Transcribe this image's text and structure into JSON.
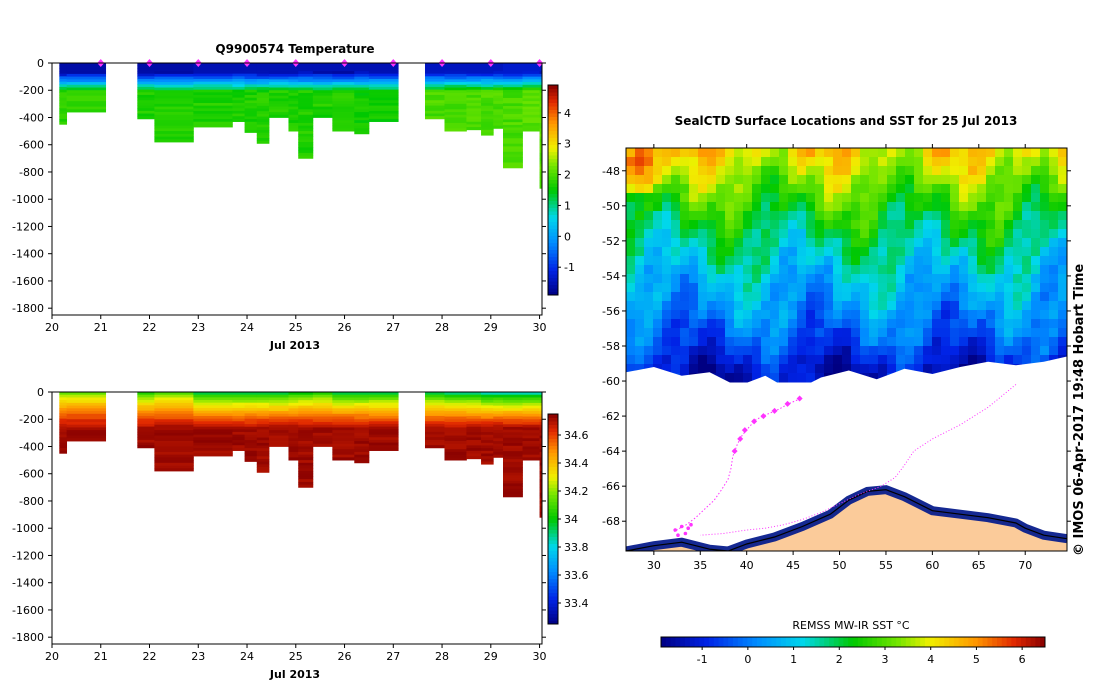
{
  "credit": "© IMOS 06-Apr-2017 19:48 Hobart Time",
  "colors": {
    "land": "#fbcb9a",
    "track": "#ff33ff",
    "marker": "#ff33ff",
    "coast": "#000000"
  },
  "chart_data": [
    {
      "id": "temperature",
      "type": "heatmap",
      "title": "Q9900574  Temperature",
      "xlabel": "Jul 2013",
      "ylabel": "",
      "x_ticks": [
        "20",
        "21",
        "22",
        "23",
        "24",
        "25",
        "26",
        "27",
        "28",
        "29",
        "30"
      ],
      "xlim": [
        20,
        30.05
      ],
      "y_ticks": [
        "0",
        "-200",
        "-400",
        "-600",
        "-800",
        "-1000",
        "-1200",
        "-1400",
        "-1600",
        "-1800"
      ],
      "ylim": [
        -1850,
        0
      ],
      "colorbar": {
        "min": -1.9,
        "max": 4.9,
        "ticks": [
          "-1",
          "0",
          "1",
          "2",
          "3",
          "4"
        ]
      },
      "profile_markers_day": [
        21,
        22,
        23,
        24,
        25,
        26,
        27,
        28,
        29,
        30
      ],
      "profiles": [
        {
          "t0": 20.15,
          "t1": 20.3,
          "depth": 450,
          "surface": -1.6,
          "deep": 1.8
        },
        {
          "t0": 20.3,
          "t1": 21.1,
          "depth": 360,
          "surface": -1.6,
          "deep": 1.8
        },
        {
          "t0": 21.75,
          "t1": 22.1,
          "depth": 410,
          "surface": -1.6,
          "deep": 1.7
        },
        {
          "t0": 22.1,
          "t1": 22.9,
          "depth": 580,
          "surface": -1.6,
          "deep": 1.7
        },
        {
          "t0": 22.9,
          "t1": 23.7,
          "depth": 470,
          "surface": -1.5,
          "deep": 1.7
        },
        {
          "t0": 23.7,
          "t1": 23.95,
          "depth": 430,
          "surface": -1.5,
          "deep": 1.7
        },
        {
          "t0": 23.95,
          "t1": 24.2,
          "depth": 510,
          "surface": -1.5,
          "deep": 1.7
        },
        {
          "t0": 24.2,
          "t1": 24.45,
          "depth": 590,
          "surface": -1.5,
          "deep": 1.7
        },
        {
          "t0": 24.45,
          "t1": 24.85,
          "depth": 400,
          "surface": -1.5,
          "deep": 1.7
        },
        {
          "t0": 24.85,
          "t1": 25.05,
          "depth": 500,
          "surface": -1.5,
          "deep": 1.7
        },
        {
          "t0": 25.05,
          "t1": 25.35,
          "depth": 700,
          "surface": -1.5,
          "deep": 1.7
        },
        {
          "t0": 25.35,
          "t1": 25.75,
          "depth": 400,
          "surface": -1.5,
          "deep": 1.7
        },
        {
          "t0": 25.75,
          "t1": 26.2,
          "depth": 500,
          "surface": -1.5,
          "deep": 1.7
        },
        {
          "t0": 26.2,
          "t1": 26.5,
          "depth": 520,
          "surface": -1.5,
          "deep": 1.6
        },
        {
          "t0": 26.5,
          "t1": 27.1,
          "depth": 430,
          "surface": -1.5,
          "deep": 1.6
        },
        {
          "t0": 27.65,
          "t1": 28.05,
          "depth": 410,
          "surface": -1.4,
          "deep": 2.0
        },
        {
          "t0": 28.05,
          "t1": 28.5,
          "depth": 500,
          "surface": -1.4,
          "deep": 2.0
        },
        {
          "t0": 28.5,
          "t1": 28.8,
          "depth": 490,
          "surface": -1.4,
          "deep": 2.0
        },
        {
          "t0": 28.8,
          "t1": 29.05,
          "depth": 530,
          "surface": -1.4,
          "deep": 2.0
        },
        {
          "t0": 29.05,
          "t1": 29.25,
          "depth": 480,
          "surface": -1.4,
          "deep": 2.0
        },
        {
          "t0": 29.25,
          "t1": 29.65,
          "depth": 770,
          "surface": -1.3,
          "deep": 2.0
        },
        {
          "t0": 29.65,
          "t1": 30.0,
          "depth": 500,
          "surface": -1.3,
          "deep": 2.1
        },
        {
          "t0": 30.0,
          "t1": 30.05,
          "depth": 920,
          "surface": -1.3,
          "deep": 2.1
        }
      ]
    },
    {
      "id": "salinity",
      "type": "heatmap",
      "title": "",
      "xlabel": "Jul 2013",
      "ylabel": "",
      "x_ticks": [
        "20",
        "21",
        "22",
        "23",
        "24",
        "25",
        "26",
        "27",
        "28",
        "29",
        "30"
      ],
      "xlim": [
        20,
        30.05
      ],
      "y_ticks": [
        "0",
        "-200",
        "-400",
        "-600",
        "-800",
        "-1000",
        "-1200",
        "-1400",
        "-1600",
        "-1800"
      ],
      "ylim": [
        -1850,
        0
      ],
      "colorbar": {
        "min": 33.25,
        "max": 34.75,
        "ticks": [
          "33.4",
          "33.6",
          "33.8",
          "34",
          "34.2",
          "34.4",
          "34.6"
        ]
      },
      "profiles": [
        {
          "t0": 20.15,
          "t1": 20.3,
          "depth": 450,
          "surface": 34.15,
          "deep": 34.72
        },
        {
          "t0": 20.3,
          "t1": 21.1,
          "depth": 360,
          "surface": 34.15,
          "deep": 34.72
        },
        {
          "t0": 21.75,
          "t1": 22.1,
          "depth": 410,
          "surface": 34.05,
          "deep": 34.72
        },
        {
          "t0": 22.1,
          "t1": 22.9,
          "depth": 580,
          "surface": 34.12,
          "deep": 34.72
        },
        {
          "t0": 22.9,
          "t1": 23.7,
          "depth": 470,
          "surface": 33.95,
          "deep": 34.72
        },
        {
          "t0": 23.7,
          "t1": 23.95,
          "depth": 430,
          "surface": 33.95,
          "deep": 34.72
        },
        {
          "t0": 23.95,
          "t1": 24.2,
          "depth": 510,
          "surface": 33.95,
          "deep": 34.72
        },
        {
          "t0": 24.2,
          "t1": 24.45,
          "depth": 590,
          "surface": 33.95,
          "deep": 34.72
        },
        {
          "t0": 24.45,
          "t1": 24.85,
          "depth": 400,
          "surface": 33.95,
          "deep": 34.72
        },
        {
          "t0": 24.85,
          "t1": 25.05,
          "depth": 500,
          "surface": 34.0,
          "deep": 34.72
        },
        {
          "t0": 25.05,
          "t1": 25.35,
          "depth": 700,
          "surface": 34.0,
          "deep": 34.72
        },
        {
          "t0": 25.35,
          "t1": 25.75,
          "depth": 400,
          "surface": 34.05,
          "deep": 34.72
        },
        {
          "t0": 25.75,
          "t1": 26.2,
          "depth": 500,
          "surface": 33.95,
          "deep": 34.72
        },
        {
          "t0": 26.2,
          "t1": 26.5,
          "depth": 520,
          "surface": 33.95,
          "deep": 34.72
        },
        {
          "t0": 26.5,
          "t1": 27.1,
          "depth": 430,
          "surface": 33.95,
          "deep": 34.72
        },
        {
          "t0": 27.65,
          "t1": 28.05,
          "depth": 410,
          "surface": 33.95,
          "deep": 34.72
        },
        {
          "t0": 28.05,
          "t1": 28.5,
          "depth": 500,
          "surface": 33.9,
          "deep": 34.72
        },
        {
          "t0": 28.5,
          "t1": 28.8,
          "depth": 490,
          "surface": 33.9,
          "deep": 34.72
        },
        {
          "t0": 28.8,
          "t1": 29.05,
          "depth": 530,
          "surface": 33.85,
          "deep": 34.72
        },
        {
          "t0": 29.05,
          "t1": 29.25,
          "depth": 480,
          "surface": 33.85,
          "deep": 34.72
        },
        {
          "t0": 29.25,
          "t1": 29.65,
          "depth": 770,
          "surface": 33.85,
          "deep": 34.72
        },
        {
          "t0": 29.65,
          "t1": 30.0,
          "depth": 500,
          "surface": 33.85,
          "deep": 34.72
        },
        {
          "t0": 30.0,
          "t1": 30.05,
          "depth": 920,
          "surface": 33.85,
          "deep": 34.72
        }
      ]
    },
    {
      "id": "sst_map",
      "type": "heatmap",
      "title": "SealCTD Surface Locations and SST for 25 Jul 2013",
      "colorbar_label": "REMSS MW-IR SST °C",
      "colorbar": {
        "min": -1.9,
        "max": 6.5,
        "ticks": [
          "-1",
          "0",
          "1",
          "2",
          "3",
          "4",
          "5",
          "6"
        ]
      },
      "lon_range": [
        27,
        74.5
      ],
      "lat_range": [
        -69.7,
        -46.7
      ],
      "x_ticks": [
        "30",
        "35",
        "40",
        "45",
        "50",
        "55",
        "60",
        "65",
        "70"
      ],
      "y_ticks": [
        "-48",
        "-50",
        "-52",
        "-54",
        "-56",
        "-58",
        "-60",
        "-62",
        "-64",
        "-66",
        "-68"
      ],
      "sst_field": {
        "lat_band_sst": [
          {
            "lat": -46.7,
            "sst": 4.3
          },
          {
            "lat": -48,
            "sst": 3.6
          },
          {
            "lat": -50,
            "sst": 2.6
          },
          {
            "lat": -52,
            "sst": 1.7
          },
          {
            "lat": -54,
            "sst": 0.9
          },
          {
            "lat": -56,
            "sst": 0.3
          },
          {
            "lat": -58,
            "sst": -0.5
          },
          {
            "lat": -59.5,
            "sst": -1.3
          }
        ],
        "warm_patch": {
          "lon": 28.5,
          "lat": -47.5,
          "sst": 5.8
        }
      },
      "ice_edge": [
        [
          27,
          -59.5
        ],
        [
          30,
          -59.2
        ],
        [
          33,
          -59.7
        ],
        [
          36,
          -59.5
        ],
        [
          39,
          -60.3
        ],
        [
          42,
          -59.7
        ],
        [
          45,
          -60.6
        ],
        [
          48,
          -59.8
        ],
        [
          51,
          -59.4
        ],
        [
          54,
          -59.9
        ],
        [
          57,
          -59.3
        ],
        [
          60,
          -59.6
        ],
        [
          63,
          -59.2
        ],
        [
          66,
          -58.9
        ],
        [
          69,
          -59.1
        ],
        [
          72,
          -58.9
        ],
        [
          74.5,
          -58.6
        ]
      ],
      "coastline": [
        [
          27,
          -69.7
        ],
        [
          30,
          -69.4
        ],
        [
          33,
          -69.2
        ],
        [
          36,
          -69.6
        ],
        [
          38,
          -69.7
        ],
        [
          40,
          -69.3
        ],
        [
          43,
          -68.9
        ],
        [
          46,
          -68.3
        ],
        [
          49,
          -67.6
        ],
        [
          51,
          -66.8
        ],
        [
          53,
          -66.3
        ],
        [
          55,
          -66.2
        ],
        [
          57,
          -66.6
        ],
        [
          60,
          -67.4
        ],
        [
          63,
          -67.6
        ],
        [
          66,
          -67.8
        ],
        [
          69,
          -68.1
        ],
        [
          70,
          -68.4
        ],
        [
          72,
          -68.8
        ],
        [
          74.5,
          -69.0
        ]
      ],
      "seal_track": [
        [
          45.8,
          -61.0
        ],
        [
          44.5,
          -61.3
        ],
        [
          43.5,
          -61.6
        ],
        [
          42.2,
          -61.9
        ],
        [
          41.0,
          -62.2
        ],
        [
          40.3,
          -62.6
        ],
        [
          39.5,
          -63.1
        ],
        [
          39.0,
          -63.6
        ],
        [
          38.5,
          -64.3
        ],
        [
          38.3,
          -65.0
        ],
        [
          38.0,
          -65.6
        ],
        [
          37.3,
          -66.2
        ],
        [
          36.5,
          -66.8
        ],
        [
          35.5,
          -67.3
        ],
        [
          34.5,
          -67.8
        ],
        [
          33.5,
          -68.2
        ],
        [
          32.8,
          -68.4
        ],
        [
          32.2,
          -68.6
        ]
      ],
      "faint_track": [
        [
          69.0,
          -60.2
        ],
        [
          66.0,
          -61.5
        ],
        [
          63.0,
          -62.5
        ],
        [
          60.0,
          -63.3
        ],
        [
          58.0,
          -64.0
        ],
        [
          57.0,
          -64.8
        ],
        [
          56.0,
          -65.5
        ],
        [
          54.5,
          -66.0
        ],
        [
          52.0,
          -66.5
        ],
        [
          50.0,
          -67.0
        ],
        [
          48.0,
          -67.5
        ],
        [
          46.0,
          -67.9
        ],
        [
          44.0,
          -68.2
        ],
        [
          42.0,
          -68.4
        ],
        [
          40.0,
          -68.5
        ],
        [
          37.5,
          -68.7
        ],
        [
          35.0,
          -68.8
        ]
      ],
      "surface_markers": [
        [
          45.7,
          -61.0
        ],
        [
          44.4,
          -61.3
        ],
        [
          43.0,
          -61.7
        ],
        [
          41.8,
          -62.0
        ],
        [
          40.8,
          -62.3
        ],
        [
          39.8,
          -62.8
        ],
        [
          39.3,
          -63.3
        ],
        [
          38.7,
          -64.0
        ]
      ],
      "seal_cluster": [
        [
          32.3,
          -68.5
        ],
        [
          33.0,
          -68.3
        ],
        [
          33.7,
          -68.4
        ],
        [
          32.6,
          -68.8
        ],
        [
          33.4,
          -68.7
        ],
        [
          34.0,
          -68.2
        ]
      ]
    }
  ]
}
